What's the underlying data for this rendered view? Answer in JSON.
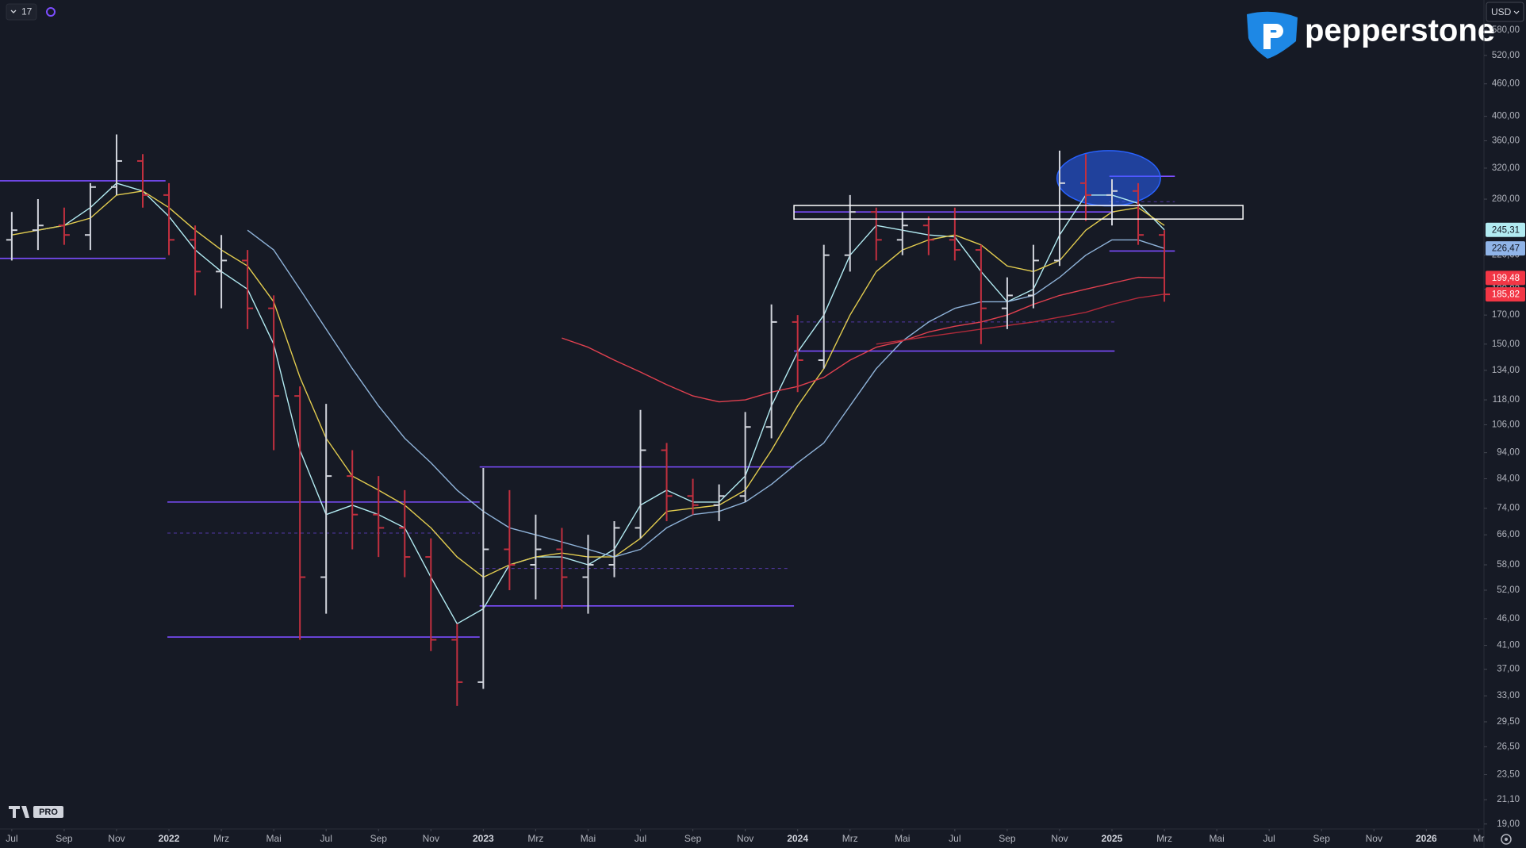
{
  "toolbar": {
    "interval": "17",
    "currency": "USD"
  },
  "brand": {
    "name": "pepperstone",
    "badge": "PRO"
  },
  "chart_data": {
    "type": "ohlc",
    "log_scale": true,
    "up_color": "#d1d4dc",
    "down_color": "#c2303f",
    "xlim": [
      -0.45,
      56.2
    ],
    "ylim": [
      18.6,
      660
    ],
    "xticks": [
      {
        "value": 0,
        "label": "Jul"
      },
      {
        "value": 2,
        "label": "Sep"
      },
      {
        "value": 4,
        "label": "Nov"
      },
      {
        "value": 6,
        "label": "2022"
      },
      {
        "value": 8,
        "label": "Mrz"
      },
      {
        "value": 10,
        "label": "Mai"
      },
      {
        "value": 12,
        "label": "Jul"
      },
      {
        "value": 14,
        "label": "Sep"
      },
      {
        "value": 16,
        "label": "Nov"
      },
      {
        "value": 18,
        "label": "2023"
      },
      {
        "value": 20,
        "label": "Mrz"
      },
      {
        "value": 22,
        "label": "Mai"
      },
      {
        "value": 24,
        "label": "Jul"
      },
      {
        "value": 26,
        "label": "Sep"
      },
      {
        "value": 28,
        "label": "Nov"
      },
      {
        "value": 30,
        "label": "2024"
      },
      {
        "value": 32,
        "label": "Mrz"
      },
      {
        "value": 34,
        "label": "Mai"
      },
      {
        "value": 36,
        "label": "Jul"
      },
      {
        "value": 38,
        "label": "Sep"
      },
      {
        "value": 40,
        "label": "Nov"
      },
      {
        "value": 42,
        "label": "2025"
      },
      {
        "value": 44,
        "label": "Mrz"
      },
      {
        "value": 46,
        "label": "Mai"
      },
      {
        "value": 48,
        "label": "Jul"
      },
      {
        "value": 50,
        "label": "Sep"
      },
      {
        "value": 52,
        "label": "Nov"
      },
      {
        "value": 54,
        "label": "2026"
      },
      {
        "value": 56,
        "label": "Mr"
      }
    ],
    "yticks": [
      {
        "value": 580,
        "label": "580,00"
      },
      {
        "value": 520,
        "label": "520,00"
      },
      {
        "value": 460,
        "label": "460,00"
      },
      {
        "value": 400,
        "label": "400,00"
      },
      {
        "value": 360,
        "label": "360,00"
      },
      {
        "value": 320,
        "label": "320,00"
      },
      {
        "value": 280,
        "label": "280,00"
      },
      {
        "value": 220,
        "label": "220,00"
      },
      {
        "value": 190,
        "label": "190,00"
      },
      {
        "value": 170,
        "label": "170,00"
      },
      {
        "value": 150,
        "label": "150,00"
      },
      {
        "value": 134,
        "label": "134,00"
      },
      {
        "value": 118,
        "label": "118,00"
      },
      {
        "value": 106,
        "label": "106,00"
      },
      {
        "value": 94,
        "label": "94,00"
      },
      {
        "value": 84,
        "label": "84,00"
      },
      {
        "value": 74,
        "label": "74,00"
      },
      {
        "value": 66,
        "label": "66,00"
      },
      {
        "value": 58,
        "label": "58,00"
      },
      {
        "value": 52,
        "label": "52,00"
      },
      {
        "value": 46,
        "label": "46,00"
      },
      {
        "value": 41,
        "label": "41,00"
      },
      {
        "value": 37,
        "label": "37,00"
      },
      {
        "value": 33,
        "label": "33,00"
      },
      {
        "value": 29.5,
        "label": "29,50"
      },
      {
        "value": 26.5,
        "label": "26,50"
      },
      {
        "value": 23.5,
        "label": "23,50"
      },
      {
        "value": 21.1,
        "label": "21,10"
      },
      {
        "value": 19,
        "label": "19,00"
      }
    ],
    "bars": [
      {
        "x": 0,
        "o": 235,
        "h": 265,
        "l": 215,
        "c": 245
      },
      {
        "x": 1,
        "o": 245,
        "h": 280,
        "l": 225,
        "c": 250
      },
      {
        "x": 2,
        "o": 250,
        "h": 270,
        "l": 230,
        "c": 240
      },
      {
        "x": 3,
        "o": 240,
        "h": 300,
        "l": 225,
        "c": 295
      },
      {
        "x": 4,
        "o": 295,
        "h": 370,
        "l": 285,
        "c": 330
      },
      {
        "x": 5,
        "o": 330,
        "h": 340,
        "l": 270,
        "c": 285
      },
      {
        "x": 6,
        "o": 285,
        "h": 300,
        "l": 220,
        "c": 235
      },
      {
        "x": 7,
        "o": 235,
        "h": 250,
        "l": 185,
        "c": 205
      },
      {
        "x": 8,
        "o": 205,
        "h": 240,
        "l": 175,
        "c": 215
      },
      {
        "x": 9,
        "o": 215,
        "h": 225,
        "l": 160,
        "c": 175
      },
      {
        "x": 10,
        "o": 175,
        "h": 185,
        "l": 95,
        "c": 120
      },
      {
        "x": 11,
        "o": 120,
        "h": 125,
        "l": 42,
        "c": 55
      },
      {
        "x": 12,
        "o": 55,
        "h": 116,
        "l": 47,
        "c": 85
      },
      {
        "x": 13,
        "o": 85,
        "h": 95,
        "l": 62,
        "c": 72
      },
      {
        "x": 14,
        "o": 72,
        "h": 85,
        "l": 60,
        "c": 68
      },
      {
        "x": 15,
        "o": 68,
        "h": 80,
        "l": 55,
        "c": 60
      },
      {
        "x": 16,
        "o": 60,
        "h": 65,
        "l": 40,
        "c": 42
      },
      {
        "x": 17,
        "o": 42,
        "h": 45,
        "l": 31.6,
        "c": 35
      },
      {
        "x": 18,
        "o": 35,
        "h": 88,
        "l": 34,
        "c": 62
      },
      {
        "x": 19,
        "o": 62,
        "h": 80,
        "l": 52,
        "c": 58
      },
      {
        "x": 20,
        "o": 58,
        "h": 72,
        "l": 50,
        "c": 62
      },
      {
        "x": 21,
        "o": 62,
        "h": 68,
        "l": 48,
        "c": 55
      },
      {
        "x": 22,
        "o": 55,
        "h": 66,
        "l": 47,
        "c": 58
      },
      {
        "x": 23,
        "o": 58,
        "h": 70,
        "l": 55,
        "c": 68
      },
      {
        "x": 24,
        "o": 68,
        "h": 113,
        "l": 65,
        "c": 95
      },
      {
        "x": 25,
        "o": 95,
        "h": 98,
        "l": 70,
        "c": 78
      },
      {
        "x": 26,
        "o": 78,
        "h": 84,
        "l": 72,
        "c": 75
      },
      {
        "x": 27,
        "o": 75,
        "h": 82,
        "l": 70,
        "c": 78
      },
      {
        "x": 28,
        "o": 78,
        "h": 112,
        "l": 76,
        "c": 105
      },
      {
        "x": 29,
        "o": 105,
        "h": 178,
        "l": 100,
        "c": 165
      },
      {
        "x": 30,
        "o": 165,
        "h": 170,
        "l": 122,
        "c": 140
      },
      {
        "x": 31,
        "o": 140,
        "h": 230,
        "l": 135,
        "c": 220
      },
      {
        "x": 32,
        "o": 220,
        "h": 285,
        "l": 205,
        "c": 265
      },
      {
        "x": 33,
        "o": 265,
        "h": 270,
        "l": 215,
        "c": 235
      },
      {
        "x": 34,
        "o": 235,
        "h": 265,
        "l": 220,
        "c": 250
      },
      {
        "x": 35,
        "o": 250,
        "h": 260,
        "l": 220,
        "c": 235
      },
      {
        "x": 36,
        "o": 235,
        "h": 270,
        "l": 215,
        "c": 225
      },
      {
        "x": 37,
        "o": 225,
        "h": 230,
        "l": 150,
        "c": 175
      },
      {
        "x": 38,
        "o": 175,
        "h": 200,
        "l": 160,
        "c": 185
      },
      {
        "x": 39,
        "o": 185,
        "h": 230,
        "l": 175,
        "c": 215
      },
      {
        "x": 40,
        "o": 215,
        "h": 345,
        "l": 210,
        "c": 300
      },
      {
        "x": 41,
        "o": 300,
        "h": 340,
        "l": 255,
        "c": 285
      },
      {
        "x": 42,
        "o": 285,
        "h": 305,
        "l": 250,
        "c": 290
      },
      {
        "x": 43,
        "o": 290,
        "h": 300,
        "l": 230,
        "c": 240
      },
      {
        "x": 44,
        "o": 240,
        "h": 245,
        "l": 180,
        "c": 185.82
      }
    ],
    "series": [
      {
        "color": "#b2ebf2",
        "x": [
          1,
          2,
          3,
          4,
          5,
          6,
          7,
          8,
          9,
          10,
          11,
          12,
          13,
          14,
          15,
          16,
          17,
          18,
          19,
          20,
          21,
          22,
          23,
          24,
          25,
          26,
          27,
          28,
          29,
          30,
          31,
          32,
          33,
          34,
          35,
          36,
          37,
          38,
          39,
          40,
          41,
          42,
          43,
          44
        ],
        "values": [
          245,
          250,
          270,
          300,
          290,
          260,
          225,
          205,
          190,
          150,
          95,
          72,
          75,
          72,
          68,
          55,
          45,
          48,
          58,
          60,
          60,
          58,
          62,
          75,
          80,
          76,
          76,
          85,
          115,
          145,
          170,
          220,
          250,
          245,
          240,
          238,
          205,
          180,
          190,
          240,
          285,
          285,
          275,
          245.31
        ]
      },
      {
        "color": "#e2cc4f",
        "x": [
          0,
          1,
          2,
          3,
          4,
          5,
          6,
          7,
          8,
          9,
          10,
          11,
          12,
          13,
          14,
          15,
          16,
          17,
          18,
          19,
          20,
          21,
          22,
          23,
          24,
          25,
          26,
          27,
          28,
          29,
          30,
          31,
          32,
          33,
          34,
          35,
          36,
          37,
          38,
          39,
          40,
          41,
          42,
          43,
          44
        ],
        "values": [
          240,
          245,
          250,
          258,
          285,
          290,
          270,
          245,
          225,
          210,
          180,
          130,
          100,
          85,
          80,
          75,
          68,
          60,
          55,
          58,
          60,
          61,
          60,
          60,
          65,
          73,
          74,
          75,
          80,
          95,
          115,
          135,
          170,
          205,
          225,
          235,
          240,
          230,
          210,
          205,
          215,
          245,
          265,
          270,
          250
        ]
      },
      {
        "color": "#8fb3d9",
        "x": [
          9,
          10,
          11,
          12,
          13,
          14,
          15,
          16,
          17,
          18,
          19,
          20,
          21,
          22,
          23,
          24,
          25,
          26,
          27,
          28,
          29,
          30,
          31,
          32,
          33,
          34,
          35,
          36,
          37,
          38,
          39,
          40,
          41,
          42,
          43,
          44
        ],
        "values": [
          245,
          225,
          190,
          160,
          135,
          115,
          100,
          90,
          80,
          73,
          68,
          66,
          64,
          62,
          60,
          62,
          68,
          72,
          73,
          76,
          82,
          90,
          98,
          115,
          135,
          152,
          165,
          175,
          180,
          180,
          185,
          200,
          220,
          235,
          235,
          226.47
        ]
      },
      {
        "color": "#e0404f",
        "x": [
          21,
          22,
          23,
          24,
          25,
          26,
          27,
          28,
          29,
          30,
          31,
          32,
          33,
          34,
          35,
          36,
          37,
          38,
          39,
          40,
          41,
          42,
          43,
          44
        ],
        "values": [
          154,
          148,
          140,
          133,
          126,
          120,
          117,
          118,
          122,
          125,
          130,
          140,
          148,
          152,
          158,
          162,
          165,
          170,
          178,
          185,
          190,
          195,
          200,
          199.48
        ]
      },
      {
        "color": "#b02a3a",
        "x": [
          33,
          35,
          37,
          39,
          41,
          42,
          43,
          44
        ],
        "values": [
          150,
          155,
          160,
          165,
          172,
          178,
          183,
          186
        ]
      }
    ],
    "level_color": "#7c4dff",
    "levels": [
      {
        "value": 303,
        "x0": -0.45,
        "x1": 5.87,
        "dashed": false
      },
      {
        "value": 217,
        "x0": -0.45,
        "x1": 5.87,
        "dashed": false
      },
      {
        "value": 76,
        "x0": 5.94,
        "x1": 17.86,
        "dashed": false
      },
      {
        "value": 42.5,
        "x0": 5.94,
        "x1": 17.86,
        "dashed": false
      },
      {
        "value": 66.5,
        "x0": 5.94,
        "x1": 17.86,
        "dashed": true
      },
      {
        "value": 88.4,
        "x0": 17.86,
        "x1": 29.86,
        "dashed": false
      },
      {
        "value": 48.6,
        "x0": 17.86,
        "x1": 29.86,
        "dashed": false
      },
      {
        "value": 57.1,
        "x0": 17.86,
        "x1": 29.7,
        "dashed": true
      },
      {
        "value": 145.6,
        "x0": 29.86,
        "x1": 42.1,
        "dashed": false
      },
      {
        "value": 265,
        "x0": 29.86,
        "x1": 42.1,
        "dashed": false
      },
      {
        "value": 165,
        "x0": 29.86,
        "x1": 42.1,
        "dashed": true
      },
      {
        "value": 309,
        "x0": 41.9,
        "x1": 44.4,
        "dashed": false
      },
      {
        "value": 224,
        "x0": 41.9,
        "x1": 44.4,
        "dashed": false
      },
      {
        "value": 277,
        "x0": 41.9,
        "x1": 44.4,
        "dashed": true
      }
    ],
    "box": {
      "x0": 29.86,
      "x1": 47.0,
      "top": 272.5,
      "bottom": 257,
      "color": "#ffffff"
    },
    "ellipse": {
      "x0": 39.9,
      "x1": 43.85,
      "top": 345,
      "bottom": 272,
      "color": "#2962ff"
    },
    "badges": [
      {
        "value": 245.31,
        "label": "245,31",
        "color": "#b2ebf2",
        "text_color": "#131722"
      },
      {
        "value": 226.47,
        "label": "226,47",
        "color": "#90b4e8",
        "text_color": "#131722"
      },
      {
        "value": 199.48,
        "label": "199,48",
        "color": "#f23645",
        "text_color": "#ffffff"
      },
      {
        "value": 185.82,
        "label": "185,82",
        "color": "#f23645",
        "text_color": "#ffffff"
      }
    ]
  }
}
